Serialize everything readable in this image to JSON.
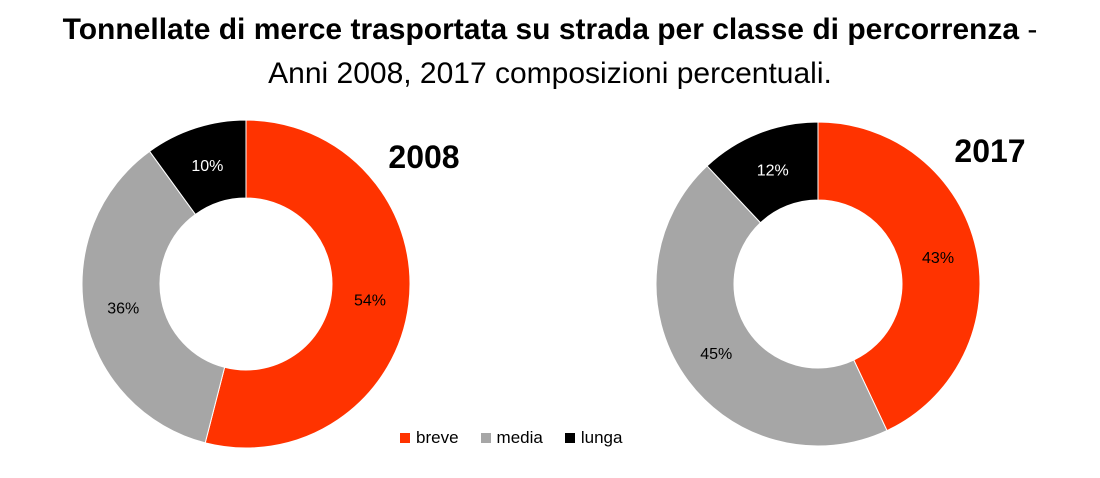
{
  "title": {
    "line1_bold": "Tonnellate di merce trasportata su strada per classe di percorrenza",
    "line1_sep": " -",
    "line2": "Anni 2008, 2017 composizioni percentuali."
  },
  "colors": {
    "breve": "#ff3300",
    "media": "#a6a6a6",
    "lunga": "#000000"
  },
  "legend": [
    {
      "label": "breve",
      "color": "#ff3300"
    },
    {
      "label": "media",
      "color": "#a6a6a6"
    },
    {
      "label": "lunga",
      "color": "#000000"
    }
  ],
  "chart_data": [
    {
      "type": "pie",
      "subtype": "donut",
      "title": "2008",
      "categories": [
        "breve",
        "media",
        "lunga"
      ],
      "values": [
        54,
        36,
        10
      ],
      "labels": [
        "54%",
        "36%",
        "10%"
      ]
    },
    {
      "type": "pie",
      "subtype": "donut",
      "title": "2017",
      "categories": [
        "breve",
        "media",
        "lunga"
      ],
      "values": [
        43,
        45,
        12
      ],
      "labels": [
        "43%",
        "45%",
        "12%"
      ]
    }
  ]
}
